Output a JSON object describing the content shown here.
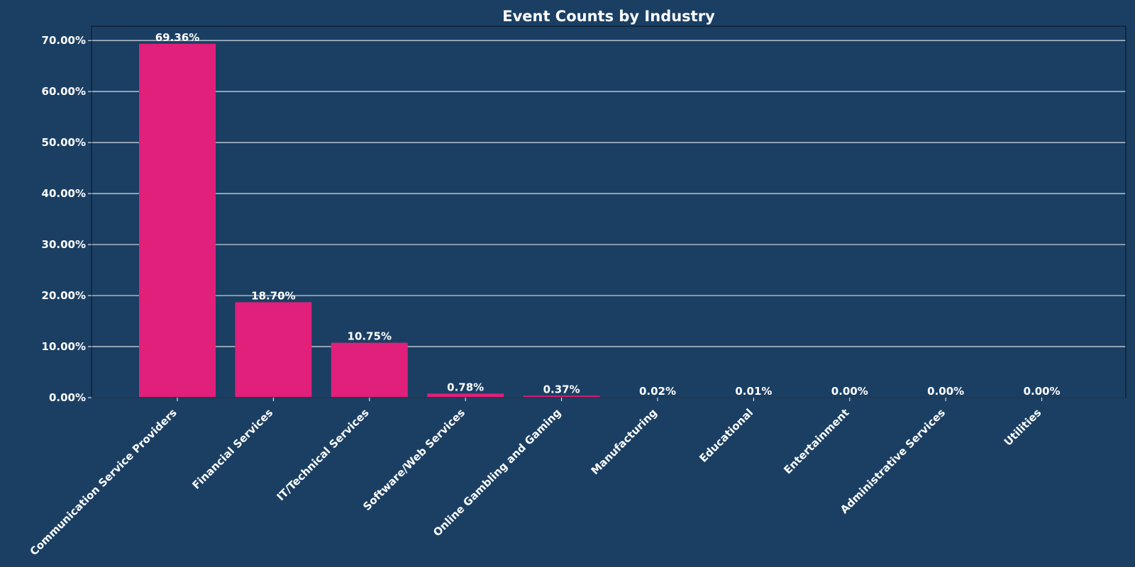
{
  "chart_data": {
    "type": "bar",
    "title": "Event Counts by Industry",
    "xlabel": "",
    "ylabel": "",
    "categories": [
      "Communication Service Providers",
      "Financial Services",
      "IT/Technical Services",
      "Software/Web Services",
      "Online Gambling and Gaming",
      "Manufacturing",
      "Educational",
      "Entertainment",
      "Administrative Services",
      "Utilities"
    ],
    "values": [
      69.36,
      18.7,
      10.75,
      0.78,
      0.37,
      0.02,
      0.01,
      0.0,
      0.0,
      0.0
    ],
    "data_labels": [
      "69.36%",
      "18.70%",
      "10.75%",
      "0.78%",
      "0.37%",
      "0.02%",
      "0.01%",
      "0.00%",
      "0.00%",
      "0.00%"
    ],
    "ylim": [
      0,
      72.8
    ],
    "yticks": [
      0,
      10,
      20,
      30,
      40,
      50,
      60,
      70
    ],
    "ytick_labels": [
      "0.00%",
      "10.00%",
      "20.00%",
      "30.00%",
      "40.00%",
      "50.00%",
      "60.00%",
      "70.00%"
    ],
    "grid": true,
    "legend": "none",
    "colors": {
      "background": "#1b3f63",
      "bar": "#e0207a",
      "text": "#ffffff",
      "grid": "#d6dde6"
    }
  }
}
